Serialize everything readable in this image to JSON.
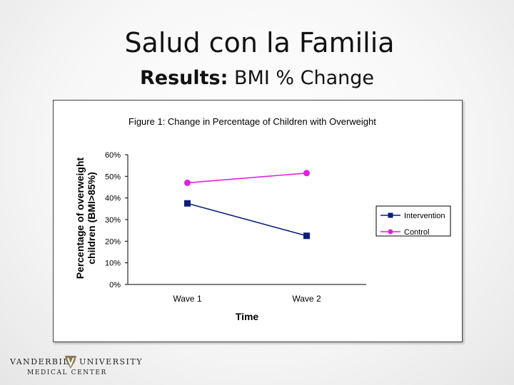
{
  "slide": {
    "title": "Salud con la Familia",
    "subtitle_bold": "Results:",
    "subtitle_rest": " BMI % Change"
  },
  "logo": {
    "word_left": "VANDERBILT",
    "word_right": "UNIVERSITY",
    "subtitle": "MEDICAL CENTER"
  },
  "chart_data": {
    "type": "line",
    "title": "Figure 1:  Change in Percentage of Children with Overweight",
    "xlabel": "Time",
    "ylabel_line1": "Percentage of overweight",
    "ylabel_line2": "children (BMI>85%)",
    "categories": [
      "Wave 1",
      "Wave 2"
    ],
    "ylim": [
      0,
      60
    ],
    "yticks": [
      0,
      10,
      20,
      30,
      40,
      50,
      60
    ],
    "ytick_labels": [
      "0%",
      "10%",
      "20%",
      "30%",
      "40%",
      "50%",
      "60%"
    ],
    "grid": false,
    "legend_position": "right",
    "series": [
      {
        "name": "Intervention",
        "values": [
          37.5,
          22.5
        ],
        "color": "#0a1f7a",
        "marker": "square"
      },
      {
        "name": "Control",
        "values": [
          47,
          51.5
        ],
        "color": "#e020e0",
        "marker": "circle"
      }
    ]
  }
}
